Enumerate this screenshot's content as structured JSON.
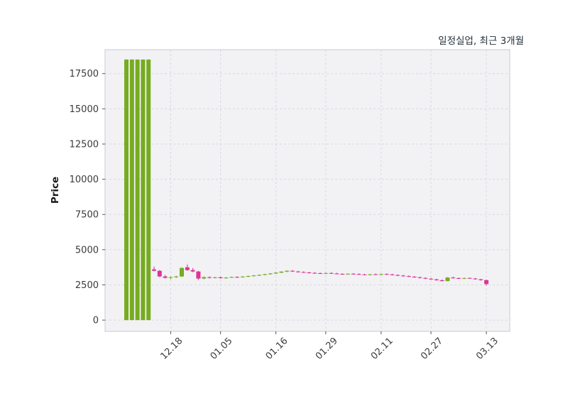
{
  "chart_data": {
    "type": "candlestick",
    "title": "일정실업, 최근 3개월",
    "ylabel": "Price",
    "ylim": [
      -800,
      19200
    ],
    "yticks": [
      0,
      2500,
      5000,
      7500,
      10000,
      12500,
      15000,
      17500
    ],
    "xticks": [
      {
        "index": 8,
        "label": "12.18"
      },
      {
        "index": 17,
        "label": "01.05"
      },
      {
        "index": 27,
        "label": "01.16"
      },
      {
        "index": 36,
        "label": "01.29"
      },
      {
        "index": 46,
        "label": "02.11"
      },
      {
        "index": 55,
        "label": "02.27"
      },
      {
        "index": 65,
        "label": "03.13"
      }
    ],
    "up_color": "#77ab21",
    "down_color": "#dd3497",
    "grid": true,
    "legend_position": "none",
    "candles": [
      [
        0,
        18500,
        0,
        18500
      ],
      [
        0,
        18500,
        0,
        18500
      ],
      [
        0,
        18500,
        0,
        18500
      ],
      [
        0,
        18500,
        0,
        18500
      ],
      [
        0,
        18500,
        0,
        18500
      ],
      [
        3600,
        3800,
        3450,
        3500
      ],
      [
        3500,
        3550,
        3050,
        3100
      ],
      [
        3100,
        3200,
        2950,
        3000
      ],
      [
        3000,
        3100,
        2900,
        3050
      ],
      [
        3050,
        3150,
        2980,
        3100
      ],
      [
        3100,
        3750,
        3050,
        3700
      ],
      [
        3750,
        3950,
        3500,
        3550
      ],
      [
        3550,
        3700,
        3400,
        3450
      ],
      [
        3450,
        3500,
        2850,
        2950
      ],
      [
        2950,
        3100,
        2900,
        3050
      ],
      [
        3050,
        3100,
        2950,
        3000
      ],
      [
        3000,
        3080,
        2960,
        3040
      ],
      [
        3040,
        3080,
        2950,
        2980
      ],
      [
        2980,
        3050,
        2930,
        3020
      ],
      [
        3020,
        3090,
        2990,
        3060
      ],
      [
        3060,
        3110,
        3000,
        3040
      ],
      [
        3040,
        3120,
        3010,
        3090
      ],
      [
        3090,
        3160,
        3050,
        3130
      ],
      [
        3130,
        3200,
        3090,
        3170
      ],
      [
        3170,
        3240,
        3130,
        3210
      ],
      [
        3210,
        3290,
        3170,
        3260
      ],
      [
        3260,
        3340,
        3220,
        3310
      ],
      [
        3310,
        3400,
        3270,
        3370
      ],
      [
        3370,
        3470,
        3330,
        3440
      ],
      [
        3440,
        3530,
        3400,
        3500
      ],
      [
        3500,
        3550,
        3420,
        3450
      ],
      [
        3450,
        3500,
        3380,
        3410
      ],
      [
        3410,
        3460,
        3350,
        3380
      ],
      [
        3380,
        3430,
        3320,
        3350
      ],
      [
        3350,
        3410,
        3300,
        3330
      ],
      [
        3330,
        3380,
        3280,
        3310
      ],
      [
        3310,
        3370,
        3260,
        3340
      ],
      [
        3340,
        3390,
        3280,
        3310
      ],
      [
        3310,
        3360,
        3250,
        3280
      ],
      [
        3280,
        3330,
        3230,
        3260
      ],
      [
        3260,
        3320,
        3220,
        3290
      ],
      [
        3290,
        3340,
        3240,
        3270
      ],
      [
        3270,
        3320,
        3210,
        3240
      ],
      [
        3240,
        3290,
        3190,
        3220
      ],
      [
        3220,
        3280,
        3180,
        3250
      ],
      [
        3250,
        3310,
        3200,
        3230
      ],
      [
        3230,
        3300,
        3190,
        3270
      ],
      [
        3270,
        3320,
        3210,
        3240
      ],
      [
        3240,
        3290,
        3170,
        3200
      ],
      [
        3200,
        3250,
        3130,
        3160
      ],
      [
        3160,
        3210,
        3090,
        3120
      ],
      [
        3120,
        3170,
        3050,
        3080
      ],
      [
        3080,
        3130,
        3010,
        3040
      ],
      [
        3040,
        3090,
        2960,
        2990
      ],
      [
        2990,
        3040,
        2910,
        2940
      ],
      [
        2940,
        2990,
        2860,
        2890
      ],
      [
        2890,
        2940,
        2800,
        2830
      ],
      [
        2830,
        2890,
        2740,
        2770
      ],
      [
        2770,
        3060,
        2750,
        3020
      ],
      [
        3020,
        3090,
        2950,
        2980
      ],
      [
        2980,
        3030,
        2920,
        2960
      ],
      [
        2960,
        3010,
        2900,
        2990
      ],
      [
        2990,
        3020,
        2930,
        2950
      ],
      [
        2950,
        2990,
        2870,
        2900
      ],
      [
        2900,
        2930,
        2800,
        2840
      ],
      [
        2840,
        2880,
        2450,
        2560
      ]
    ]
  }
}
